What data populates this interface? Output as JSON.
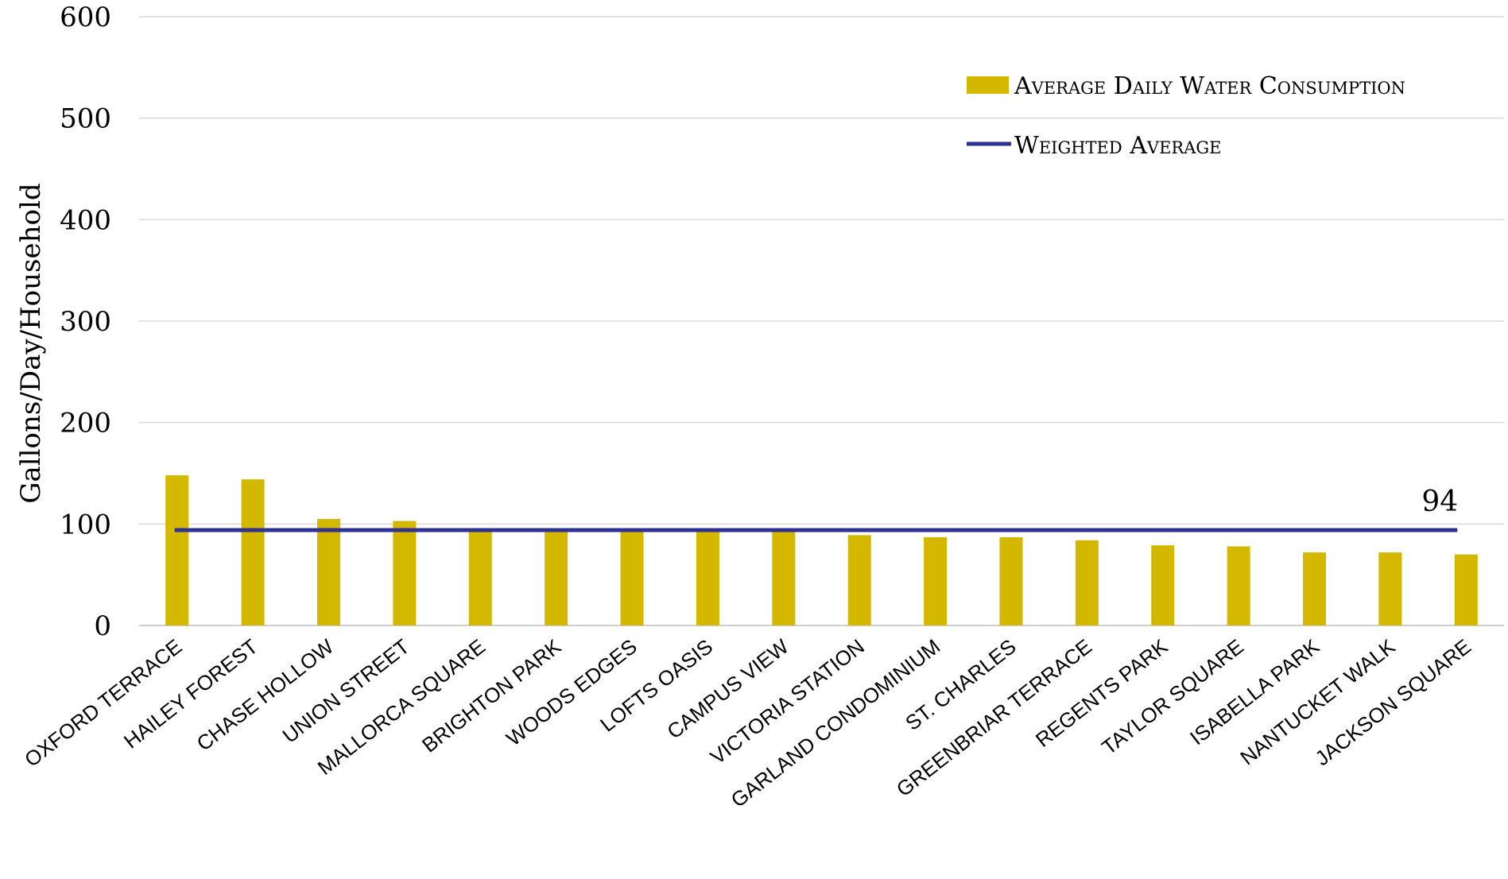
{
  "chart_data": {
    "type": "bar",
    "ylabel": "Gallons/Day/Household",
    "ylim": [
      0,
      600
    ],
    "yticks": [
      "0",
      "100",
      "200",
      "300",
      "400",
      "500",
      "600"
    ],
    "grid": true,
    "legend_position": "top-right",
    "categories": [
      "OXFORD TERRACE",
      "HAILEY FOREST",
      "CHASE HOLLOW",
      "UNION STREET",
      "MALLORCA SQUARE",
      "BRIGHTON PARK",
      "WOODS EDGES",
      "LOFTS OASIS",
      "CAMPUS VIEW",
      "VICTORIA STATION",
      "GARLAND CONDOMINIUM",
      "ST. CHARLES",
      "GREENBRIAR TERRACE",
      "REGENTS PARK",
      "TAYLOR SQUARE",
      "ISABELLA PARK",
      "NANTUCKET WALK",
      "JACKSON SQUARE"
    ],
    "series": [
      {
        "name": "Average Daily Water Consumption",
        "type": "bar",
        "color": "#D4B800",
        "values": [
          148,
          144,
          105,
          103,
          96,
          95,
          95,
          95,
          94,
          89,
          87,
          87,
          84,
          79,
          78,
          72,
          72,
          70
        ]
      },
      {
        "name": "Weighted Average",
        "type": "line",
        "color": "#2E3192",
        "values": [
          94,
          94,
          94,
          94,
          94,
          94,
          94,
          94,
          94,
          94,
          94,
          94,
          94,
          94,
          94,
          94,
          94,
          94
        ]
      }
    ],
    "annotation": "94"
  }
}
